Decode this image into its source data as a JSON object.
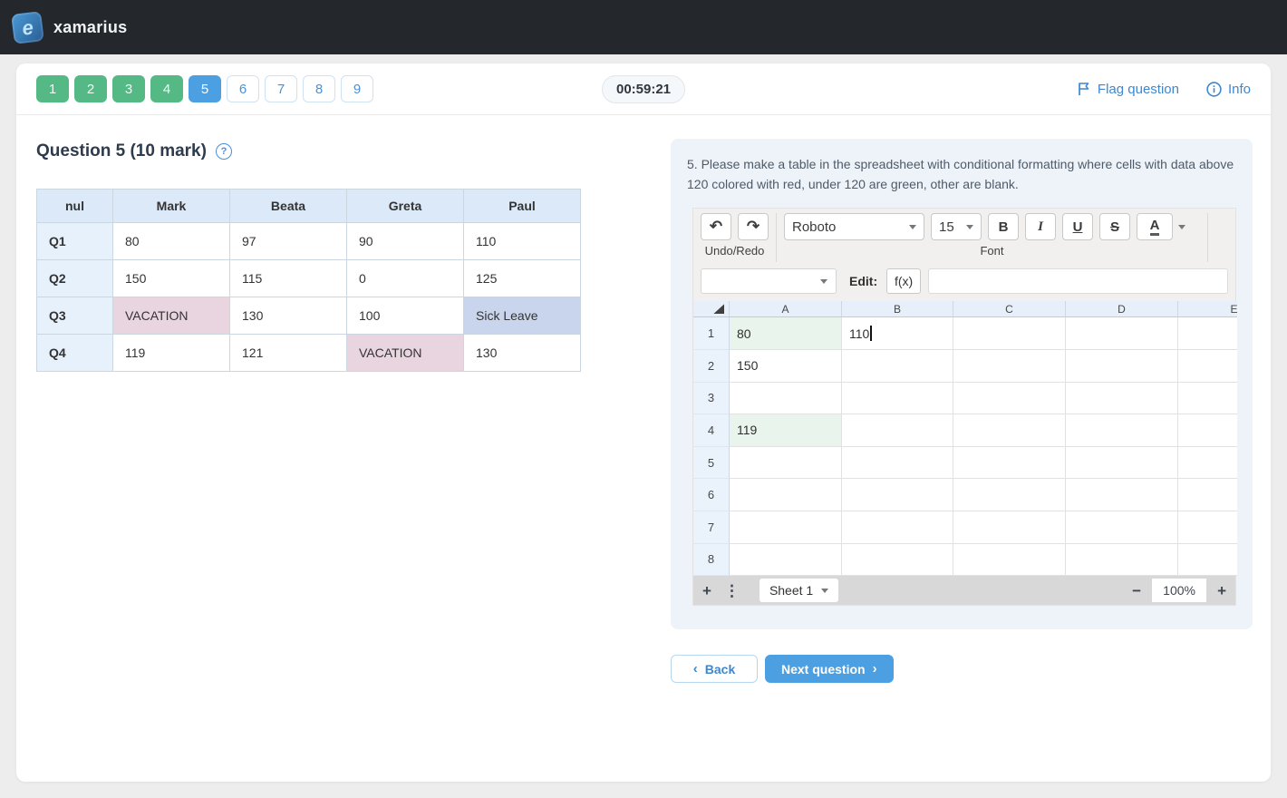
{
  "topbar": {
    "brand": "xamarius"
  },
  "question_nav": {
    "items": [
      {
        "label": "1",
        "state": "answered"
      },
      {
        "label": "2",
        "state": "answered"
      },
      {
        "label": "3",
        "state": "answered"
      },
      {
        "label": "4",
        "state": "answered"
      },
      {
        "label": "5",
        "state": "current"
      },
      {
        "label": "6",
        "state": "unanswered"
      },
      {
        "label": "7",
        "state": "unanswered"
      },
      {
        "label": "8",
        "state": "unanswered"
      },
      {
        "label": "9",
        "state": "unanswered"
      }
    ],
    "timer": "00:59:21",
    "flag_label": "Flag question",
    "info_label": "Info"
  },
  "question": {
    "title": "Question 5 (10 mark)",
    "table": {
      "headers": [
        "nul",
        "Mark",
        "Beata",
        "Greta",
        "Paul"
      ],
      "rows": [
        {
          "label": "Q1",
          "cells": [
            {
              "text": "80"
            },
            {
              "text": "97"
            },
            {
              "text": "90"
            },
            {
              "text": "110"
            }
          ]
        },
        {
          "label": "Q2",
          "cells": [
            {
              "text": "150"
            },
            {
              "text": "115"
            },
            {
              "text": "0"
            },
            {
              "text": "125"
            }
          ]
        },
        {
          "label": "Q3",
          "cells": [
            {
              "text": "VACATION",
              "bg": "pink"
            },
            {
              "text": "130"
            },
            {
              "text": "100"
            },
            {
              "text": "Sick Leave",
              "bg": "blue"
            }
          ]
        },
        {
          "label": "Q4",
          "cells": [
            {
              "text": "119"
            },
            {
              "text": "121"
            },
            {
              "text": "VACATION",
              "bg": "pink"
            },
            {
              "text": "130"
            }
          ]
        }
      ]
    }
  },
  "task_panel": {
    "prompt": "5. Please make a table in the spreadsheet with conditional formatting where cells with data above 120 colored with red, under 120 are green, other are blank.",
    "spreadsheet": {
      "toolbar": {
        "undo_redo_group_label": "Undo/Redo",
        "font_group_label": "Font",
        "undo_glyph": "↶",
        "redo_glyph": "↷",
        "font_name": "Roboto",
        "font_size": "15",
        "bold_label": "B",
        "italic_label": "I",
        "underline_label": "U",
        "strike_label": "S",
        "text_color_label": "A"
      },
      "formula_row": {
        "edit_label": "Edit:",
        "fx_label": "f(x)",
        "formula_value": ""
      },
      "grid": {
        "columns": [
          "A",
          "B",
          "C",
          "D",
          "E"
        ],
        "row_count": 8,
        "cells": [
          {
            "ref": "A1",
            "value": "80",
            "highlight": "green"
          },
          {
            "ref": "B1",
            "value": "110",
            "editing": true
          },
          {
            "ref": "A2",
            "value": "150"
          },
          {
            "ref": "A4",
            "value": "119",
            "highlight": "green"
          }
        ]
      },
      "bottom_bar": {
        "add_sheet_glyph": "+",
        "menu_glyph": "⋮",
        "sheet_tab": "Sheet 1",
        "zoom_out_glyph": "−",
        "zoom_value": "100%",
        "zoom_in_glyph": "+"
      }
    }
  },
  "footer_nav": {
    "back_label": "Back",
    "next_label": "Next question"
  },
  "colors": {
    "navbar_bg": "#24272b",
    "answered_green": "#55b986",
    "current_blue": "#4c9fe0",
    "link_blue": "#3d87cf",
    "panel_bg": "#eef3f9",
    "table_header_bg": "#dce9f8",
    "vacation_pink": "#e9d5e0",
    "sick_leave_blue": "#c9d5ed",
    "sheet_green": "#e9f5ec"
  }
}
